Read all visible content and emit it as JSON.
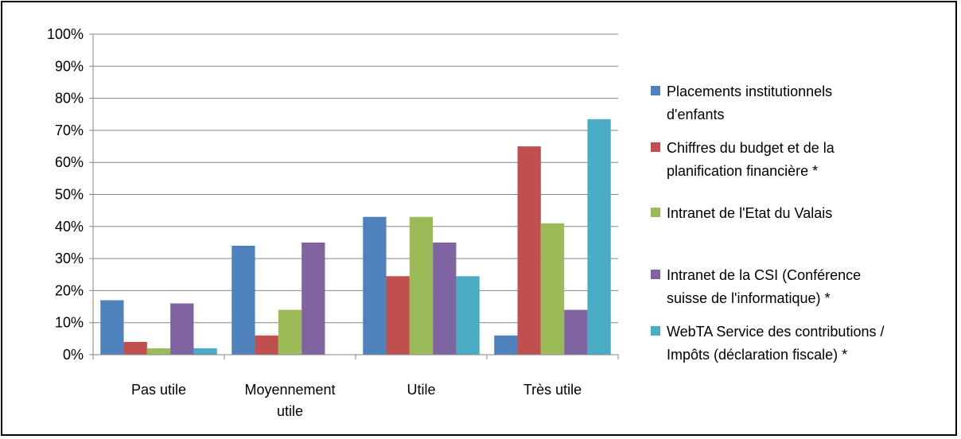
{
  "chart_data": {
    "type": "bar",
    "title": "",
    "xlabel": "",
    "ylabel": "",
    "ylim": [
      0,
      100
    ],
    "yticks": [
      "0%",
      "10%",
      "20%",
      "30%",
      "40%",
      "50%",
      "60%",
      "70%",
      "80%",
      "90%",
      "100%"
    ],
    "categories": [
      [
        "Pas utile"
      ],
      [
        "Moyennement",
        "utile"
      ],
      [
        "Utile"
      ],
      [
        "Très utile"
      ]
    ],
    "series": [
      {
        "name": [
          "Placements institutionnels",
          "d'enfants"
        ],
        "color": "#4f81bd",
        "values": [
          17,
          34,
          43,
          6
        ]
      },
      {
        "name": [
          "Chiffres du budget et de la",
          "planification financière *"
        ],
        "color": "#c0504d",
        "values": [
          4,
          6,
          24.5,
          65
        ]
      },
      {
        "name": [
          "Intranet de l'Etat du Valais"
        ],
        "color": "#9bbb59",
        "values": [
          2,
          14,
          43,
          41
        ]
      },
      {
        "name": [
          "Intranet de la CSI (Conférence",
          "suisse de l'informatique) *"
        ],
        "color": "#8064a2",
        "values": [
          16,
          35,
          35,
          14
        ]
      },
      {
        "name": [
          "WebTA Service des contributions /",
          "Impôts (déclaration fiscale) *"
        ],
        "color": "#4bacc6",
        "values": [
          2,
          0,
          24.5,
          73.5
        ]
      }
    ],
    "grid": true,
    "legend_position": "right"
  }
}
